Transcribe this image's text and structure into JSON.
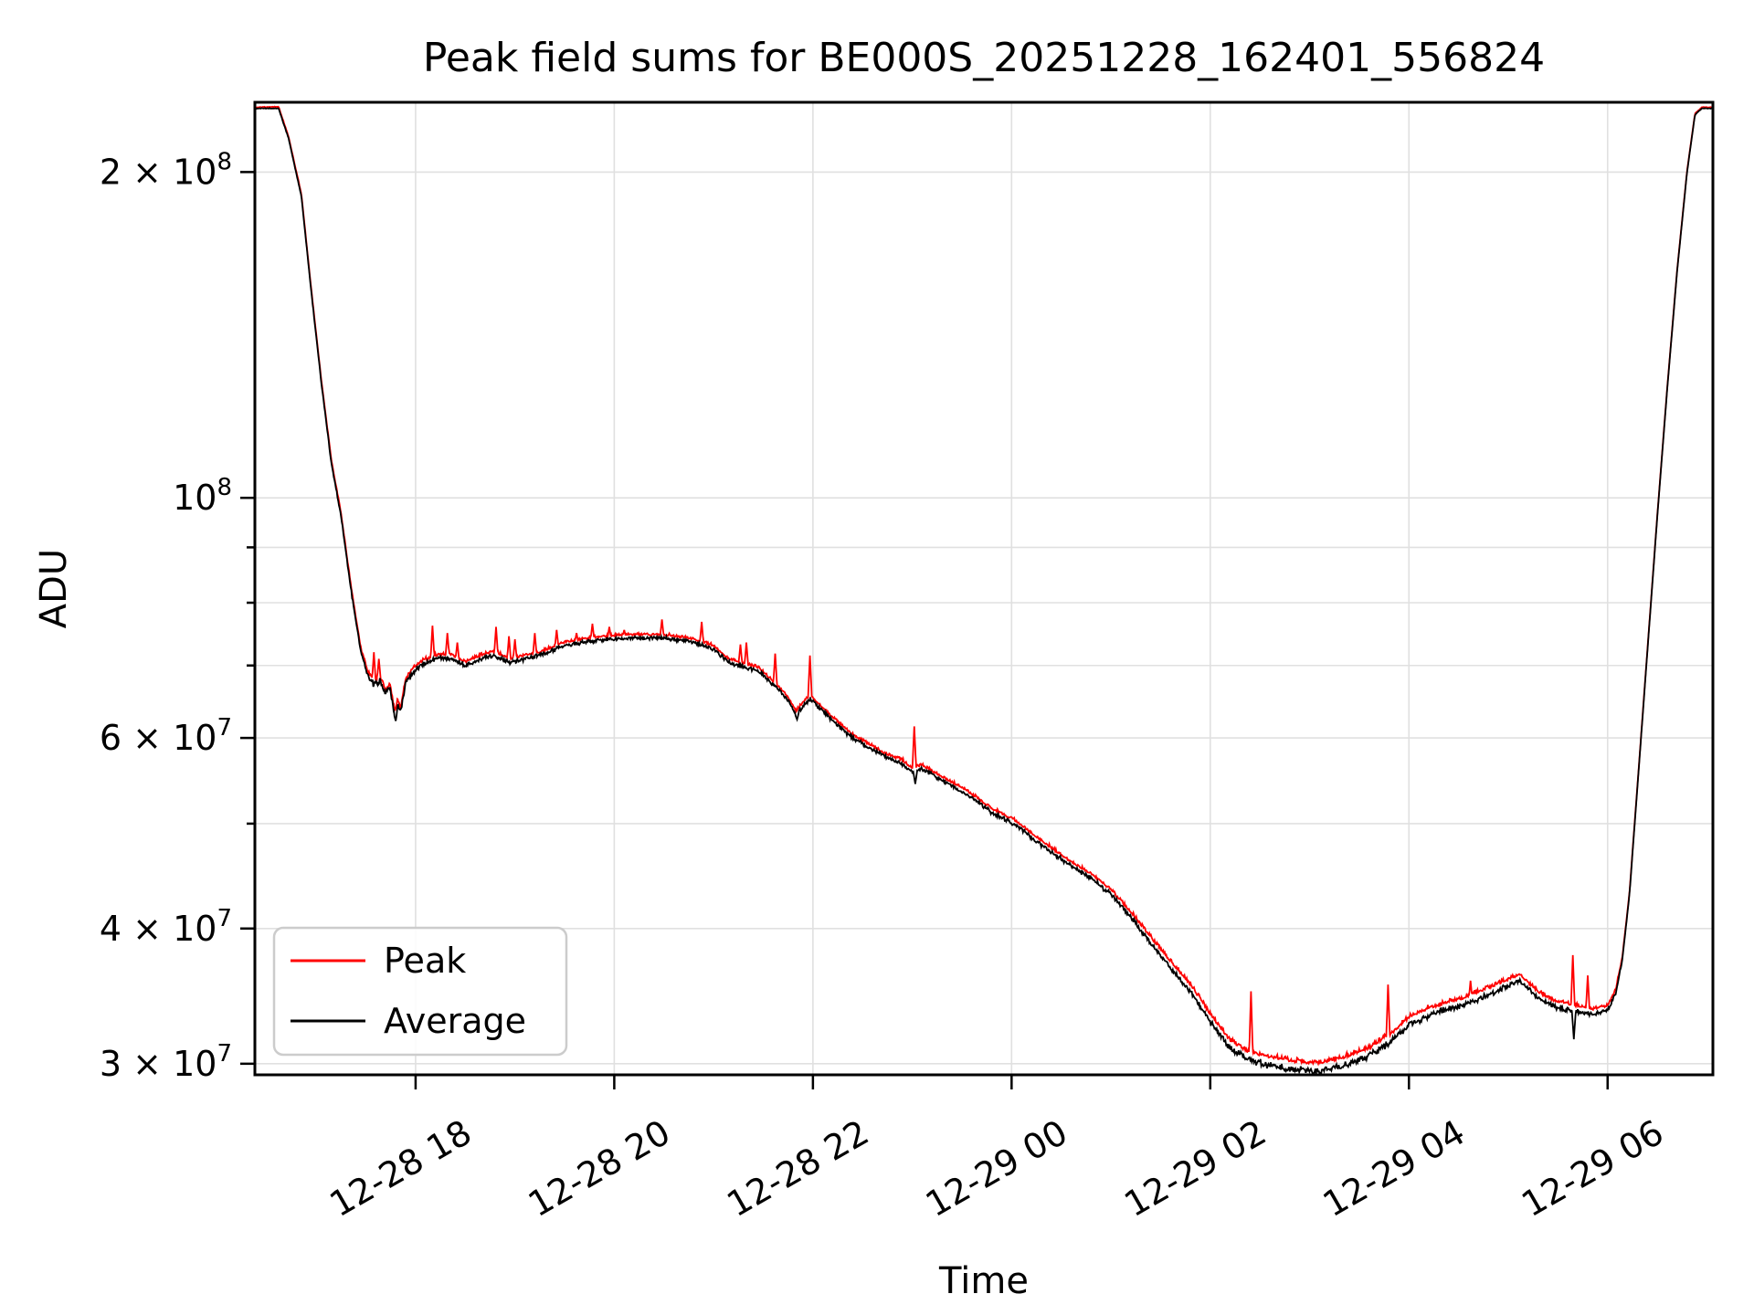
{
  "figure": {
    "title": "Peak field sums for BE000S_20251228_162401_556824",
    "background": "#ffffff"
  },
  "chart_data": {
    "type": "line",
    "title": "Peak field sums for BE000S_20251228_162401_556824",
    "xlabel": "Time",
    "ylabel": "ADU",
    "yscale": "log",
    "grid": true,
    "grid_color": "#e0e0e0",
    "legend_position": "lower left",
    "x_unit": "hours since 2025-12-28 00:00",
    "xlim": [
      16.382,
      31.06
    ],
    "ylim": [
      29300000.0,
      232000000.0
    ],
    "x_ticks": [
      {
        "hour": 18,
        "label": "12-28 18"
      },
      {
        "hour": 20,
        "label": "12-28 20"
      },
      {
        "hour": 22,
        "label": "12-28 22"
      },
      {
        "hour": 24,
        "label": "12-29 00"
      },
      {
        "hour": 26,
        "label": "12-29 02"
      },
      {
        "hour": 28,
        "label": "12-29 04"
      },
      {
        "hour": 30,
        "label": "12-29 06"
      }
    ],
    "y_ticks": [
      {
        "value": 200000000.0,
        "label": "2 × 10⁸",
        "pre": "2 × 10",
        "sup": "8",
        "labeled": true
      },
      {
        "value": 100000000.0,
        "label": "10⁸",
        "pre": "10",
        "sup": "8",
        "labeled": true
      },
      {
        "value": 90000000.0,
        "labeled": false
      },
      {
        "value": 80000000.0,
        "labeled": false
      },
      {
        "value": 70000000.0,
        "labeled": false
      },
      {
        "value": 60000000.0,
        "label": "6 × 10⁷",
        "pre": "6 × 10",
        "sup": "7",
        "labeled": true
      },
      {
        "value": 50000000.0,
        "labeled": false
      },
      {
        "value": 40000000.0,
        "label": "4 × 10⁷",
        "pre": "4 × 10",
        "sup": "7",
        "labeled": true
      },
      {
        "value": 30000000.0,
        "label": "3 × 10⁷",
        "pre": "3 × 10",
        "sup": "7",
        "labeled": true
      }
    ],
    "noise_profile": [
      [
        16.382,
        0.0008
      ],
      [
        16.95,
        0.0018
      ],
      [
        17.4,
        0.005
      ],
      [
        17.6,
        0.009
      ],
      [
        17.95,
        0.0065
      ],
      [
        19.0,
        0.0055
      ],
      [
        21.0,
        0.005
      ],
      [
        23.0,
        0.0055
      ],
      [
        25.2,
        0.006
      ],
      [
        25.9,
        0.0085
      ],
      [
        26.6,
        0.0095
      ],
      [
        28.2,
        0.0085
      ],
      [
        29.6,
        0.007
      ],
      [
        30.05,
        0.005
      ],
      [
        30.3,
        0.0012
      ],
      [
        31.06,
        0.0008
      ]
    ],
    "series": [
      {
        "name": "Peak",
        "color": "#ff0000",
        "derived_from": "Average plus upward offset and transient spikes",
        "offset_profile": [
          [
            16.382,
            0.002
          ],
          [
            17.4,
            0.006
          ],
          [
            19.0,
            0.0055
          ],
          [
            23.0,
            0.006
          ],
          [
            25.0,
            0.008
          ],
          [
            25.8,
            0.013
          ],
          [
            26.8,
            0.016
          ],
          [
            27.8,
            0.014
          ],
          [
            29.0,
            0.012
          ],
          [
            29.9,
            0.01
          ],
          [
            30.25,
            0.003
          ],
          [
            31.06,
            0.002
          ]
        ],
        "spikes": [
          [
            17.58,
            72000000.0
          ],
          [
            17.63,
            71000000.0
          ],
          [
            18.17,
            76200000.0
          ],
          [
            18.32,
            75000000.0
          ],
          [
            18.42,
            73500000.0
          ],
          [
            18.81,
            76000000.0
          ],
          [
            18.94,
            74500000.0
          ],
          [
            19.0,
            74000000.0
          ],
          [
            19.2,
            75000000.0
          ],
          [
            19.42,
            75500000.0
          ],
          [
            19.62,
            75000000.0
          ],
          [
            19.78,
            76500000.0
          ],
          [
            19.95,
            76000000.0
          ],
          [
            20.1,
            75500000.0
          ],
          [
            20.48,
            77200000.0
          ],
          [
            20.88,
            76800000.0
          ],
          [
            21.27,
            73200000.0
          ],
          [
            21.33,
            73500000.0
          ],
          [
            21.62,
            71800000.0
          ],
          [
            21.97,
            71500000.0
          ],
          [
            23.02,
            61500000.0
          ],
          [
            25.48,
            38500000.0
          ],
          [
            25.7,
            35200000.0
          ],
          [
            26.41,
            35000000.0
          ],
          [
            27.79,
            35500000.0
          ],
          [
            28.62,
            35800000.0
          ],
          [
            29.65,
            37800000.0
          ],
          [
            29.8,
            36200000.0
          ]
        ]
      },
      {
        "name": "Average",
        "color": "#000000",
        "points": [
          [
            16.382,
            229000000.0
          ],
          [
            16.62,
            229000000.0
          ],
          [
            16.72,
            215000000.0
          ],
          [
            16.85,
            190000000.0
          ],
          [
            16.95,
            155000000.0
          ],
          [
            17.05,
            128000000.0
          ],
          [
            17.15,
            108000000.0
          ],
          [
            17.25,
            96000000.0
          ],
          [
            17.36,
            81000000.0
          ],
          [
            17.45,
            72000000.0
          ],
          [
            17.52,
            68500000.0
          ],
          [
            17.58,
            67200000.0
          ],
          [
            17.64,
            67800000.0
          ],
          [
            17.7,
            66000000.0
          ],
          [
            17.74,
            66800000.0
          ],
          [
            17.79,
            63000000.0
          ],
          [
            17.82,
            64500000.0
          ],
          [
            17.85,
            63300000.0
          ],
          [
            17.9,
            67500000.0
          ],
          [
            17.97,
            69000000.0
          ],
          [
            18.05,
            70000000.0
          ],
          [
            18.2,
            71000000.0
          ],
          [
            18.35,
            71200000.0
          ],
          [
            18.5,
            70000000.0
          ],
          [
            18.65,
            71000000.0
          ],
          [
            18.8,
            71500000.0
          ],
          [
            18.95,
            70500000.0
          ],
          [
            19.1,
            71000000.0
          ],
          [
            19.25,
            71500000.0
          ],
          [
            19.5,
            73000000.0
          ],
          [
            19.8,
            73800000.0
          ],
          [
            20.1,
            74200000.0
          ],
          [
            20.5,
            74200000.0
          ],
          [
            20.8,
            73500000.0
          ],
          [
            21.0,
            72500000.0
          ],
          [
            21.15,
            70500000.0
          ],
          [
            21.3,
            69800000.0
          ],
          [
            21.45,
            69200000.0
          ],
          [
            21.6,
            67200000.0
          ],
          [
            21.75,
            65000000.0
          ],
          [
            21.83,
            63000000.0
          ],
          [
            21.9,
            64200000.0
          ],
          [
            21.97,
            65200000.0
          ],
          [
            22.05,
            64200000.0
          ],
          [
            22.2,
            62200000.0
          ],
          [
            22.4,
            60000000.0
          ],
          [
            22.6,
            58500000.0
          ],
          [
            22.75,
            57500000.0
          ],
          [
            22.9,
            56800000.0
          ],
          [
            23.0,
            55800000.0
          ],
          [
            23.1,
            56200000.0
          ],
          [
            23.3,
            54800000.0
          ],
          [
            23.55,
            53200000.0
          ],
          [
            23.8,
            51200000.0
          ],
          [
            24.05,
            49800000.0
          ],
          [
            24.3,
            47800000.0
          ],
          [
            24.55,
            46000000.0
          ],
          [
            24.8,
            44500000.0
          ],
          [
            25.0,
            43000000.0
          ],
          [
            25.2,
            41000000.0
          ],
          [
            25.4,
            38800000.0
          ],
          [
            25.6,
            36800000.0
          ],
          [
            25.8,
            35000000.0
          ],
          [
            26.0,
            32800000.0
          ],
          [
            26.2,
            31000000.0
          ],
          [
            26.4,
            30200000.0
          ],
          [
            26.6,
            29900000.0
          ],
          [
            26.85,
            29600000.0
          ],
          [
            27.1,
            29500000.0
          ],
          [
            27.35,
            29900000.0
          ],
          [
            27.6,
            30500000.0
          ],
          [
            27.85,
            31600000.0
          ],
          [
            28.0,
            32600000.0
          ],
          [
            28.15,
            33100000.0
          ],
          [
            28.35,
            33600000.0
          ],
          [
            28.55,
            34000000.0
          ],
          [
            28.75,
            34600000.0
          ],
          [
            29.0,
            35400000.0
          ],
          [
            29.12,
            35800000.0
          ],
          [
            29.28,
            34600000.0
          ],
          [
            29.45,
            33900000.0
          ],
          [
            29.65,
            33600000.0
          ],
          [
            29.85,
            33300000.0
          ],
          [
            30.0,
            33600000.0
          ],
          [
            30.08,
            34800000.0
          ],
          [
            30.15,
            37500000.0
          ],
          [
            30.22,
            43000000.0
          ],
          [
            30.3,
            54000000.0
          ],
          [
            30.4,
            72000000.0
          ],
          [
            30.5,
            96000000.0
          ],
          [
            30.6,
            126000000.0
          ],
          [
            30.7,
            162000000.0
          ],
          [
            30.8,
            200000000.0
          ],
          [
            30.88,
            226000000.0
          ],
          [
            30.95,
            229000000.0
          ],
          [
            31.06,
            229000000.0
          ]
        ],
        "dips": [
          [
            17.8,
            62200000.0
          ],
          [
            21.84,
            62400000.0
          ],
          [
            23.03,
            54400000.0
          ],
          [
            29.66,
            31600000.0
          ]
        ]
      }
    ]
  },
  "legend": {
    "items": [
      {
        "label": "Peak",
        "color": "#ff0000"
      },
      {
        "label": "Average",
        "color": "#000000"
      }
    ]
  }
}
